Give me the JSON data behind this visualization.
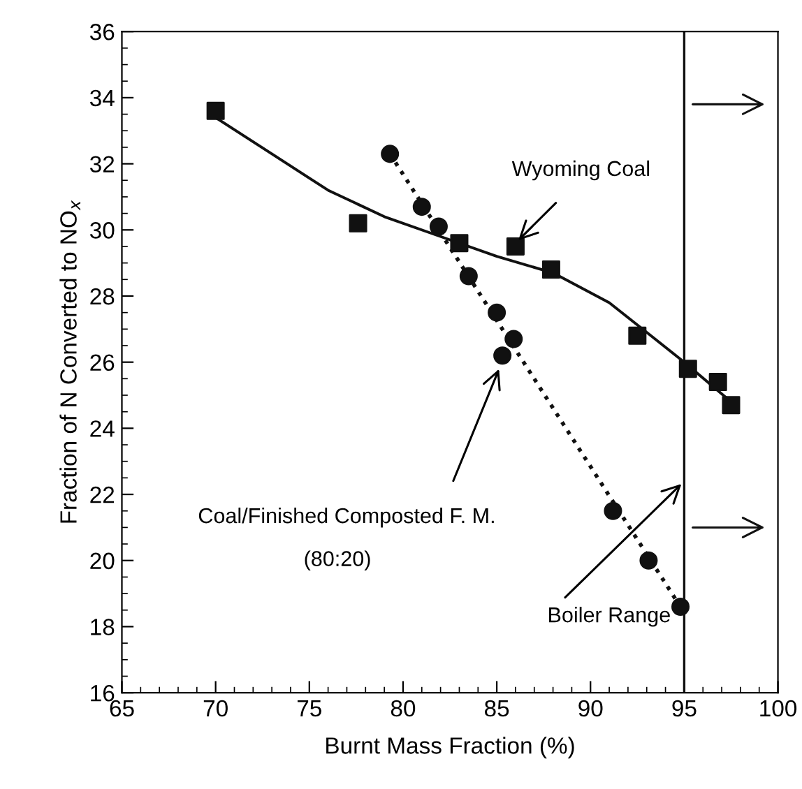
{
  "chart_data": {
    "type": "scatter",
    "xlabel": "Burnt Mass Fraction (%)",
    "ylabel": "Fraction of N Converted to NO$_{x}$",
    "xlim": [
      65,
      100
    ],
    "ylim": [
      16,
      36
    ],
    "xticks": [
      65,
      70,
      75,
      80,
      85,
      90,
      95,
      100
    ],
    "yticks": [
      16,
      18,
      20,
      22,
      24,
      26,
      28,
      30,
      32,
      34,
      36
    ],
    "grid": false,
    "legend": false,
    "series": [
      {
        "type": "scatter",
        "marker": "square",
        "color": "#111111",
        "x": [
          70,
          77.6,
          83,
          86,
          87.9,
          92.5,
          95.2,
          96.8,
          97.5
        ],
        "values": [
          33.6,
          30.2,
          29.6,
          29.5,
          28.8,
          26.8,
          25.8,
          25.4,
          24.7
        ]
      },
      {
        "type": "line",
        "marker": "none",
        "line_style": "solid",
        "color": "#111111",
        "x": [
          70,
          73,
          76,
          79,
          82,
          85,
          88,
          91,
          93,
          95,
          97.5
        ],
        "values": [
          33.4,
          32.3,
          31.2,
          30.4,
          29.8,
          29.2,
          28.7,
          27.8,
          26.9,
          26.0,
          24.8
        ]
      },
      {
        "type": "scatter",
        "marker": "circle",
        "color": "#111111",
        "x": [
          79.3,
          81,
          81.9,
          83.5,
          85,
          85.3,
          85.9,
          91.2,
          93.1,
          94.8
        ],
        "values": [
          32.3,
          30.7,
          30.1,
          28.6,
          27.5,
          26.2,
          26.7,
          21.5,
          20.0,
          18.6
        ]
      },
      {
        "type": "line",
        "marker": "none",
        "line_style": "dotted",
        "color": "#111111",
        "x": [
          79.3,
          94.8
        ],
        "values": [
          32.3,
          18.6
        ]
      }
    ],
    "ref_lines": [
      {
        "axis": "x",
        "value": 95,
        "color": "#111111",
        "line_style": "solid"
      }
    ],
    "annotations": [
      {
        "text": "Wyoming Coal",
        "x": 86,
        "y": 29.6
      },
      {
        "text": "Coal/Finished Composted F. M.",
        "x": 85.2,
        "y": 25.9
      },
      {
        "text": "Boiler Range",
        "x": 95,
        "y": 22.4
      },
      "(80:20)"
    ]
  }
}
